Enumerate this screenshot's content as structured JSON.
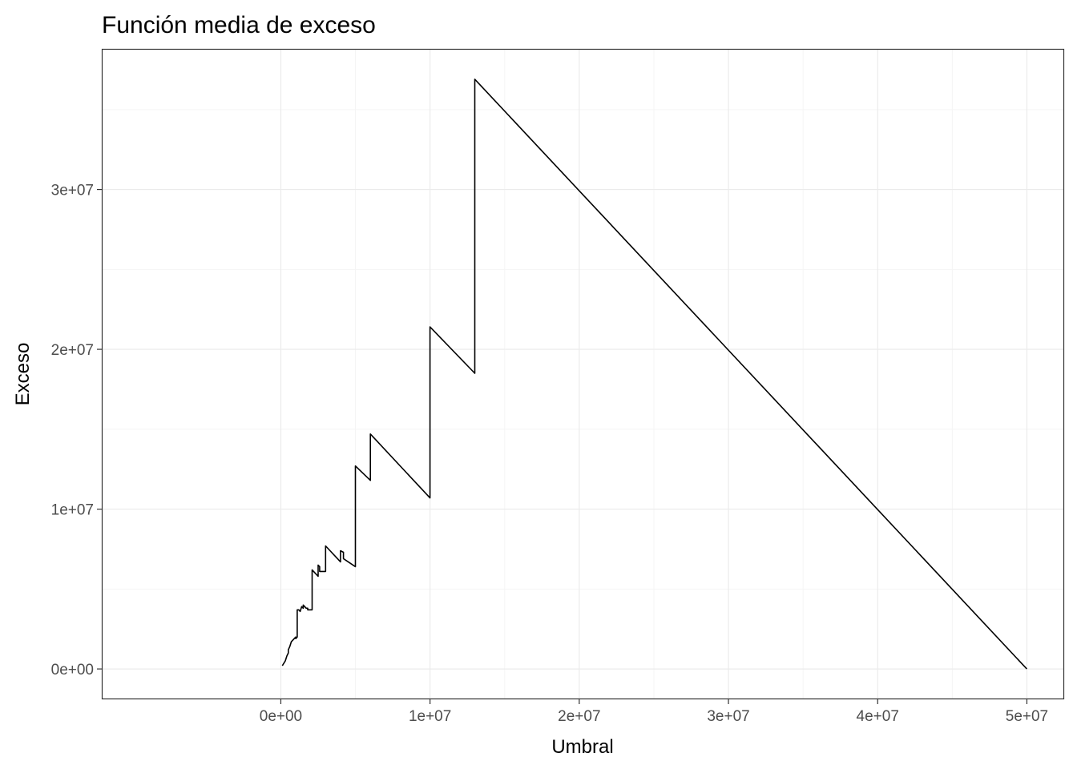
{
  "chart_data": {
    "type": "line",
    "title": "Función media de exceso",
    "xlabel": "Umbral",
    "ylabel": "Exceso",
    "xlim": [
      -12000000,
      52500000
    ],
    "ylim": [
      -1900000,
      38800000
    ],
    "x_ticks": [
      0,
      10000000,
      20000000,
      30000000,
      40000000,
      50000000
    ],
    "x_tick_labels": [
      "0e+00",
      "1e+07",
      "2e+07",
      "3e+07",
      "4e+07",
      "5e+07"
    ],
    "y_ticks": [
      0,
      10000000,
      20000000,
      30000000
    ],
    "y_tick_labels": [
      "0e+00",
      "1e+07",
      "2e+07",
      "3e+07"
    ],
    "grid": true,
    "colors": {
      "line": "#000000",
      "grid_major": "#ebebeb",
      "grid_minor": "#f5f5f5",
      "border": "#333333",
      "tick_text": "#4d4d4d"
    },
    "series": [
      {
        "x": [
          100000,
          300000,
          400000,
          500000,
          500000,
          600000,
          700000,
          700000,
          1000000,
          1000000,
          1100000,
          1100000,
          1200000,
          1300000,
          1400000,
          1500000,
          1500000,
          1700000,
          1800000,
          1800000,
          2100000,
          2100000,
          2500000,
          2500000,
          2600000,
          2600000,
          3000000,
          3000000,
          4000000,
          4000000,
          4200000,
          4200000,
          5000000,
          5000000,
          6000000,
          6000000,
          10000000,
          10000000,
          13000000,
          13000000,
          50000000
        ],
        "y": [
          200000,
          500000,
          800000,
          1000000,
          1200000,
          1400000,
          1700000,
          1700000,
          2000000,
          1900000,
          2000000,
          3700000,
          3700000,
          3600000,
          3900000,
          3800000,
          4000000,
          3800000,
          3800000,
          3700000,
          3700000,
          6200000,
          5800000,
          6500000,
          6400000,
          6100000,
          6100000,
          7700000,
          6700000,
          7400000,
          7300000,
          6900000,
          6400000,
          12700000,
          11800000,
          14700000,
          10700000,
          21400000,
          18500000,
          36900000,
          0
        ]
      }
    ]
  }
}
